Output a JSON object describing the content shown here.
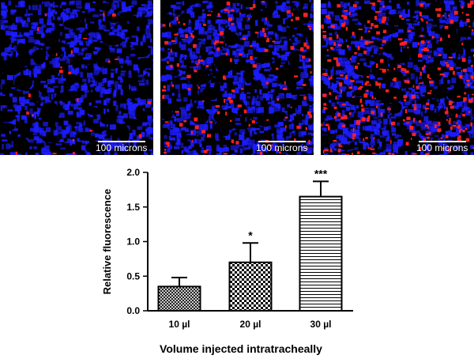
{
  "panels": [
    {
      "scale_label": "100 microns"
    },
    {
      "scale_label": "100 microns"
    },
    {
      "scale_label": "100 microns"
    }
  ],
  "colors": {
    "tissue": "#1c1cff",
    "signal": "#ff2020",
    "background": "#000000"
  },
  "chart_data": {
    "type": "bar",
    "categories": [
      "10 µl",
      "20 µl",
      "30 µl"
    ],
    "values": [
      0.35,
      0.7,
      1.65
    ],
    "error": [
      0.13,
      0.28,
      0.22
    ],
    "significance": [
      "",
      "*",
      "***"
    ],
    "fill_patterns": [
      "crosshatch-fine",
      "checkerboard",
      "horizontal-lines"
    ],
    "xlabel": "Volume injected intratracheally",
    "ylabel": "Relative fluorescence",
    "ylim": [
      0,
      2.0
    ],
    "yticks": [
      "0.0",
      "0.5",
      "1.0",
      "1.5",
      "2.0"
    ],
    "grid": false
  }
}
